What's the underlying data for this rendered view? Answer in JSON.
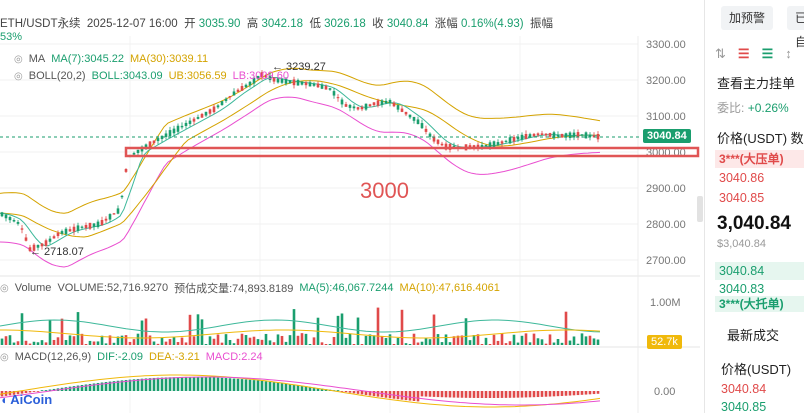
{
  "ohlc": {
    "symbol": "ETH/USDT永续",
    "datetime": "2025-12-07 16:00",
    "open_label": "开",
    "open": "3035.90",
    "high_label": "高",
    "high": "3042.18",
    "low_label": "低",
    "low": "3026.18",
    "close_label": "收",
    "close": "3040.84",
    "change_label": "涨幅",
    "change": "0.16%(4.93)",
    "amp_label": "振幅",
    "amp_overflow": "53%"
  },
  "ma": {
    "name": "MA",
    "ma7": "MA(7):3045.22",
    "ma30": "MA(30):3039.11"
  },
  "boll": {
    "name": "BOLL(20,2)",
    "boll": "BOLL:3043.09",
    "ub": "UB:3056.59",
    "lb": "LB:3009.60"
  },
  "price_axis": [
    "3300.00",
    "3200.00",
    "3100.00",
    "3000.00",
    "2900.00",
    "2800.00",
    "2700.00"
  ],
  "current_price_tag": "3040.84",
  "annotations": {
    "high_marker": "3239.27",
    "low_marker": "2718.07",
    "level_label": "3000"
  },
  "volume": {
    "name": "Volume",
    "volume": "VOLUME:52,716.9270",
    "est": "预估成交量:74,893.8189",
    "ma5": "MA(5):46,067.7244",
    "ma10": "MA(10):47,616.4061",
    "axis_label": "1.00M",
    "tag": "52.7k"
  },
  "macd": {
    "name": "MACD(12,26,9)",
    "dif": "DIF:-2.09",
    "dea": "DEA:-3.21",
    "macd": "MACD:2.24",
    "axis_label": "0.00"
  },
  "logo": "AiCoin",
  "colors": {
    "up": "#1a9e6e",
    "down": "#e04a4a",
    "ma7": "#f0b90b",
    "ma30": "#e94fd0",
    "boll": "#d4a300",
    "level": "#e05555"
  },
  "right_panel": {
    "alert_button": "加预警",
    "second_button": "已自",
    "icons": [
      "list-icon",
      "list-icon-2",
      "list-icon-3",
      "list-icon-4"
    ],
    "order_title": "查看主力挂单",
    "ratio_label": "委比:",
    "ratio_value": "+0.26%",
    "price_header": "价格(USDT)",
    "qty_header_fragment": "数",
    "ask_whale": "3***(大压单)",
    "asks": [
      "3040.86",
      "3040.85"
    ],
    "last_price": "3,040.84",
    "last_price_usd": "$3,040.84",
    "bids": [
      "3040.84",
      "3040.83"
    ],
    "bid_whale": "3***(大托单)",
    "trades_title": "最新成交",
    "trades_header": "价格(USDT)",
    "trades": [
      "3040.84",
      "3040.85"
    ]
  }
}
